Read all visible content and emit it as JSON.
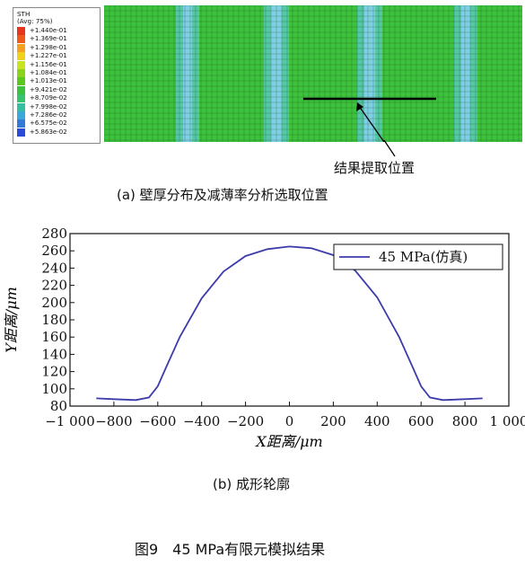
{
  "panel_a": {
    "legend": {
      "title_line1": "STH",
      "title_line2": "(Avg: 75%)",
      "values": [
        "+1.440e-01",
        "+1.369e-01",
        "+1.298e-01",
        "+1.227e-01",
        "+1.156e-01",
        "+1.084e-01",
        "+1.013e-01",
        "+9.421e-02",
        "+8.709e-02",
        "+7.998e-02",
        "+7.286e-02",
        "+6.575e-02",
        "+5.863e-02"
      ],
      "colors": [
        "#e8341c",
        "#f05a18",
        "#f7a020",
        "#f0d21e",
        "#c8e41e",
        "#8cd31e",
        "#5cc81e",
        "#3cc23c",
        "#38c46e",
        "#34c0a0",
        "#3aa8d8",
        "#3478d8",
        "#2a4ad8"
      ]
    },
    "callout_label": "结果提取位置",
    "caption": "(a) 壁厚分布及减薄率分析选取位置"
  },
  "chart_data": {
    "type": "line",
    "xlabel": "X距离/μm",
    "ylabel": "Y距离/μm",
    "xlim": [
      -1000,
      1000
    ],
    "ylim": [
      80,
      280
    ],
    "xticks": [
      -1000,
      -800,
      -600,
      -400,
      -200,
      0,
      200,
      400,
      600,
      800,
      1000
    ],
    "xtick_labels": [
      "−1 000",
      "−800",
      "−600",
      "−400",
      "−200",
      "0",
      "200",
      "400",
      "600",
      "800",
      "1 000"
    ],
    "yticks": [
      80,
      100,
      120,
      140,
      160,
      180,
      200,
      220,
      240,
      260,
      280
    ],
    "legend_position": "top-right",
    "series": [
      {
        "name": "45 MPa(仿真)",
        "color": "#3c3caa",
        "x": [
          -880,
          -800,
          -700,
          -640,
          -600,
          -560,
          -500,
          -400,
          -300,
          -200,
          -100,
          0,
          100,
          200,
          300,
          400,
          500,
          560,
          600,
          640,
          700,
          800,
          880
        ],
        "y": [
          89,
          88,
          87,
          90,
          103,
          126,
          160,
          205,
          236,
          254,
          262,
          265,
          263,
          255,
          237,
          206,
          160,
          126,
          103,
          90,
          87,
          88,
          89
        ]
      }
    ]
  },
  "panel_b_caption": "(b) 成形轮廓",
  "figure_caption": "图9　45 MPa有限元模拟结果"
}
